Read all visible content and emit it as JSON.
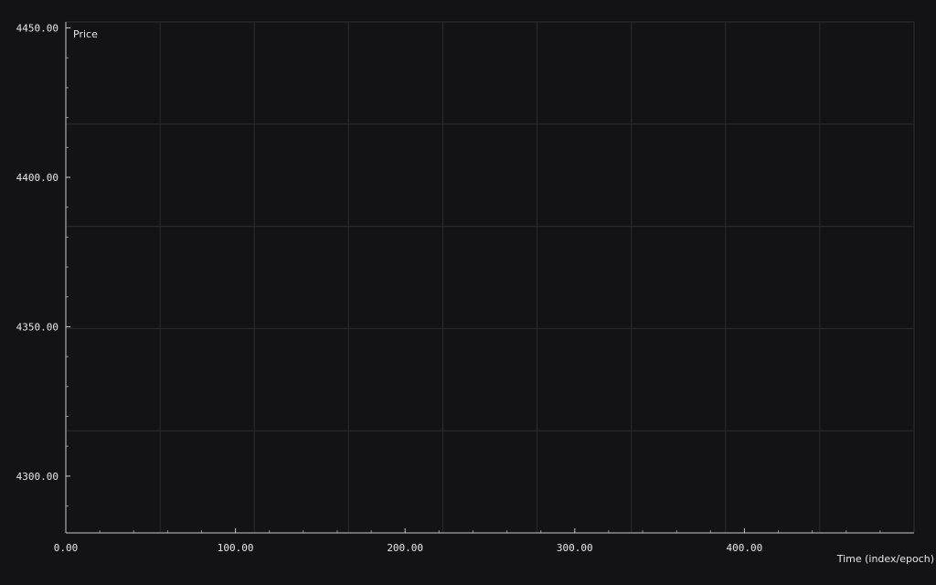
{
  "chart_data": {
    "type": "line",
    "title": "",
    "xlabel": "Time (index/epoch)",
    "ylabel": "Price",
    "xlim": [
      0,
      500
    ],
    "ylim": [
      4281,
      4452
    ],
    "x_ticks": [
      0,
      100,
      200,
      300,
      400
    ],
    "x_tick_labels": [
      "0.00",
      "100.00",
      "200.00",
      "300.00",
      "400.00"
    ],
    "y_ticks": [
      4300,
      4350,
      4400,
      4450
    ],
    "y_tick_labels": [
      "4300.00",
      "4350.00",
      "4400.00",
      "4450.00"
    ],
    "grid": true,
    "series": []
  },
  "colors": {
    "background": "#131315",
    "grid": "#2c2c30",
    "axis": "#c8c8c8",
    "text": "#e8e8e8"
  }
}
